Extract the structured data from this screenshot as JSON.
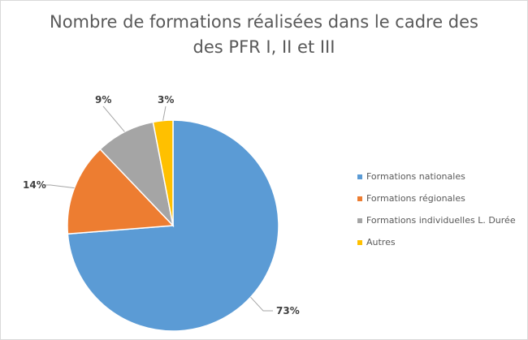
{
  "chart_data": {
    "type": "pie",
    "title_line1": "Nombre de formations réalisées dans le cadre des",
    "title_line2": "des PFR I, II et III",
    "categories": [
      "Formations nationales",
      "Formations régionales",
      "Formations individuelles L. Durée",
      "Autres"
    ],
    "values": [
      73,
      14,
      9,
      3
    ],
    "labels": [
      "73%",
      "14%",
      "9%",
      "3%"
    ],
    "colors": [
      "#5b9bd5",
      "#ed7d31",
      "#a5a5a5",
      "#ffc000"
    ],
    "legend_position": "right"
  }
}
